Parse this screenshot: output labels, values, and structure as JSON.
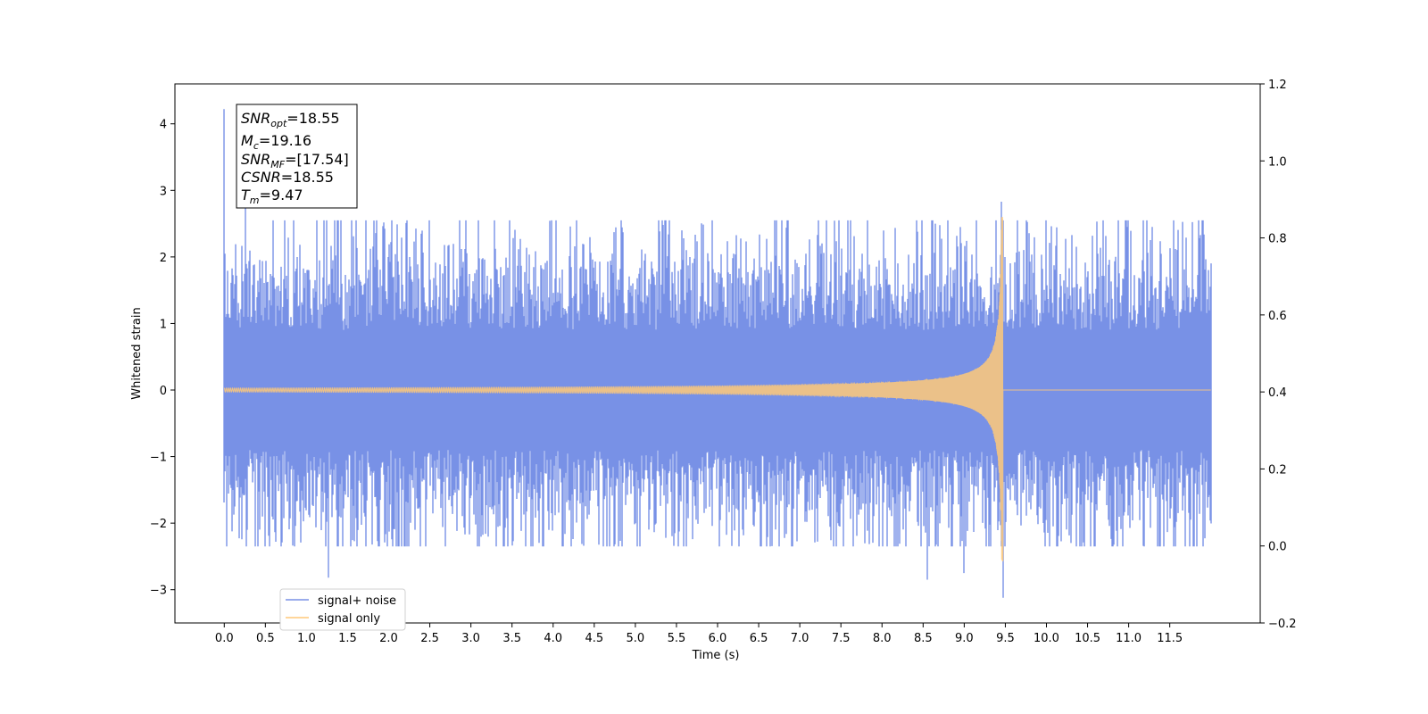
{
  "chart_data": {
    "type": "line",
    "xlabel": "Time (s)",
    "ylabel": "Whitened strain",
    "xlim": [
      -0.6,
      12.6
    ],
    "ylim": [
      -3.5,
      4.6
    ],
    "y2lim": [
      -0.2,
      1.2
    ],
    "xticks": [
      "0.0",
      "0.5",
      "1.0",
      "1.5",
      "2.0",
      "2.5",
      "3.0",
      "3.5",
      "4.0",
      "4.5",
      "5.0",
      "5.5",
      "6.0",
      "6.5",
      "7.0",
      "7.5",
      "8.0",
      "8.5",
      "9.0",
      "9.5",
      "10.0",
      "10.5",
      "11.0",
      "11.5"
    ],
    "yticks": [
      "4",
      "3",
      "2",
      "1",
      "0",
      "−1",
      "−2",
      "−3"
    ],
    "y2ticks": [
      "1.2",
      "1.0",
      "0.8",
      "0.6",
      "0.4",
      "0.2",
      "0.0",
      "−0.2"
    ],
    "grid": false,
    "legend_position": "lower-left",
    "series": [
      {
        "name": "signal+ noise",
        "color": "#7891e6",
        "t_start": 0.0,
        "t_end": 12.0,
        "typical_abs_amplitude": 1.5,
        "peak_values": [
          {
            "x": 0.0,
            "y": 4.22
          },
          {
            "x": 0.26,
            "y": 2.85
          },
          {
            "x": 1.27,
            "y": -2.82
          },
          {
            "x": 6.78,
            "y": 2.55
          },
          {
            "x": 8.55,
            "y": -2.85
          },
          {
            "x": 9.45,
            "y": 2.83
          },
          {
            "x": 9.47,
            "y": -3.12
          },
          {
            "x": 9.0,
            "y": -2.75
          }
        ]
      },
      {
        "name": "signal only",
        "color": "#ffc978",
        "type": "chirp",
        "t_start": 0.0,
        "t_merger": 9.47,
        "t_end": 12.0,
        "amplitude_start": 0.03,
        "amplitude_max": 2.6
      }
    ],
    "annotation": {
      "lines": [
        {
          "sym": "SNR",
          "sub": "opt",
          "value": "=18.55"
        },
        {
          "sym": "M",
          "sub": "c",
          "value": "=19.16"
        },
        {
          "sym": "SNR",
          "sub": "MF",
          "value": "=[17.54]"
        },
        {
          "sym": "CSNR",
          "sub": "",
          "value": "=18.55"
        },
        {
          "sym": "T",
          "sub": "m",
          "value": "=9.47"
        }
      ]
    }
  }
}
